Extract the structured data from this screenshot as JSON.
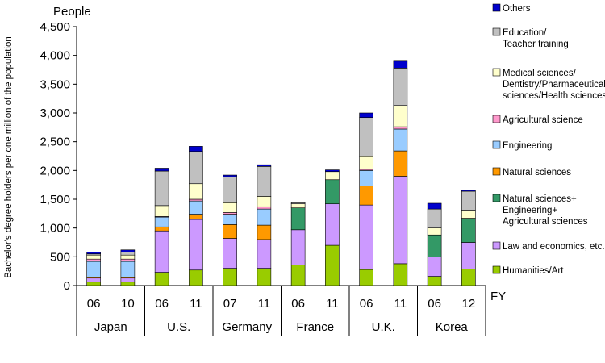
{
  "chart_data": {
    "type": "bar",
    "stacked": true,
    "ylabel": "Bachelor's degree holders per one million of the population",
    "y_unit": "People",
    "x_unit": "FY",
    "ylim": [
      0,
      4500
    ],
    "yticks": [
      0,
      500,
      1000,
      1500,
      2000,
      2500,
      3000,
      3500,
      4000,
      4500
    ],
    "ytick_labels": [
      "0",
      "500",
      "1,000",
      "1,500",
      "2,000",
      "2,500",
      "3,000",
      "3,500",
      "4,000",
      "4,500"
    ],
    "grid": false,
    "legend_position": "right",
    "groups": [
      {
        "name": "Japan",
        "years": [
          "06",
          "10"
        ]
      },
      {
        "name": "U.S.",
        "years": [
          "06",
          "11"
        ]
      },
      {
        "name": "Germany",
        "years": [
          "07",
          "11"
        ]
      },
      {
        "name": "France",
        "years": [
          "06",
          "11"
        ]
      },
      {
        "name": "U.K.",
        "years": [
          "06",
          "11"
        ]
      },
      {
        "name": "Korea",
        "years": [
          "06",
          "12"
        ]
      }
    ],
    "series": [
      {
        "name": "Humanities/Art",
        "color": "#99cc00",
        "values": [
          60,
          60,
          230,
          270,
          300,
          300,
          360,
          700,
          280,
          380,
          160,
          290
        ]
      },
      {
        "name": "Law and economics, etc.",
        "color": "#cc99ff",
        "values": [
          70,
          70,
          720,
          880,
          520,
          500,
          610,
          720,
          1120,
          1520,
          340,
          460
        ]
      },
      {
        "name": "Natural sciences+\nEngineering+\nAgricultural sciences",
        "color": "#339966",
        "values": [
          0,
          0,
          0,
          0,
          0,
          0,
          380,
          420,
          0,
          0,
          380,
          420
        ]
      },
      {
        "name": "Natural sciences",
        "color": "#ff9900",
        "values": [
          20,
          20,
          70,
          90,
          240,
          250,
          0,
          0,
          330,
          440,
          0,
          0
        ]
      },
      {
        "name": "Engineering",
        "color": "#99ccff",
        "values": [
          270,
          270,
          170,
          230,
          180,
          280,
          0,
          0,
          270,
          380,
          0,
          0
        ]
      },
      {
        "name": "Agricultural science",
        "color": "#ff99cc",
        "values": [
          40,
          40,
          10,
          30,
          30,
          40,
          0,
          0,
          20,
          40,
          0,
          0
        ]
      },
      {
        "name": "Medical sciences/\nDentistry/Pharmaceutical\nsciences/Health sciences",
        "color": "#ffffcc",
        "values": [
          70,
          70,
          190,
          270,
          170,
          180,
          70,
          140,
          220,
          370,
          120,
          140
        ]
      },
      {
        "name": "Education/\nTeacher training",
        "color": "#c0c0c0",
        "values": [
          20,
          50,
          600,
          560,
          450,
          520,
          20,
          0,
          680,
          650,
          330,
          330
        ]
      },
      {
        "name": "Others",
        "color": "#0000cc",
        "values": [
          30,
          40,
          50,
          90,
          30,
          30,
          0,
          30,
          80,
          120,
          100,
          20
        ]
      }
    ]
  }
}
